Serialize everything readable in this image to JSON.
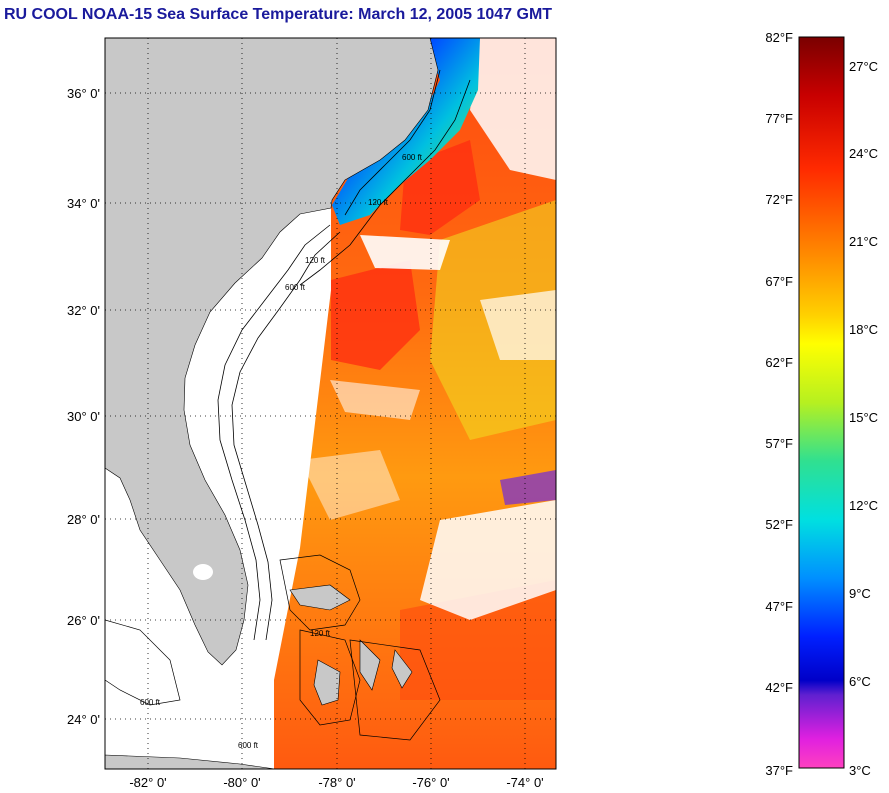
{
  "title": "RU COOL  NOAA-15  Sea Surface Temperature:  March 12, 2005 1047 GMT",
  "map": {
    "lat_ticks": [
      "36° 0'",
      "34° 0'",
      "32° 0'",
      "30° 0'",
      "28° 0'",
      "26° 0'",
      "24° 0'"
    ],
    "lon_ticks": [
      "-82° 0'",
      "-80° 0'",
      "-78° 0'",
      "-76° 0'",
      "-74° 0'"
    ],
    "contour_labels": [
      "120 ft",
      "600 ft"
    ],
    "colors": {
      "land": "#c8c8c8",
      "ocean_no_data": "#ffffff",
      "frame": "#000000"
    }
  },
  "colorbar": {
    "fahrenheit_labels": [
      "82°F",
      "77°F",
      "72°F",
      "67°F",
      "62°F",
      "57°F",
      "52°F",
      "47°F",
      "42°F",
      "37°F"
    ],
    "celsius_labels": [
      "27°C",
      "24°C",
      "21°C",
      "18°C",
      "15°C",
      "12°C",
      "9°C",
      "6°C",
      "3°C"
    ],
    "range_f": [
      37,
      82
    ],
    "range_c": [
      3,
      28
    ]
  }
}
